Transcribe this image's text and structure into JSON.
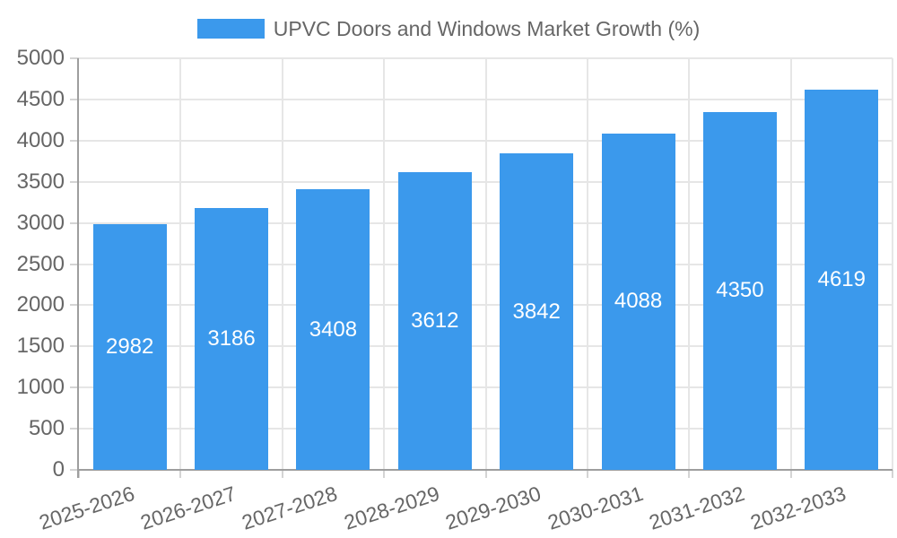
{
  "legend": {
    "label": "UPVC Doors and Windows Market Growth (%)"
  },
  "colors": {
    "bar": "#3B99EC",
    "bar_label_text": "#FFFFFF",
    "tick_text": "#666666",
    "legend_text": "#666666",
    "gridline": "#E6E6E6",
    "tick_mark": "#D4D4D4",
    "axis_line": "#9E9E9E",
    "background": "#FFFFFF"
  },
  "chart_data": {
    "type": "bar",
    "title": "",
    "categories": [
      "2025-2026",
      "2026-2027",
      "2027-2028",
      "2028-2029",
      "2029-2030",
      "2030-2031",
      "2031-2032",
      "2032-2033"
    ],
    "series": [
      {
        "name": "UPVC Doors and Windows Market Growth (%)",
        "values": [
          2982,
          3186,
          3408,
          3612,
          3842,
          4088,
          4350,
          4619
        ]
      }
    ],
    "bar_value_labels": [
      "2982",
      "3186",
      "3408",
      "3612",
      "3842",
      "4088",
      "4350",
      "4619"
    ],
    "xlabel": "",
    "ylabel": "",
    "ylim": [
      0,
      5000
    ],
    "ytick_step": 500,
    "ytick_labels": [
      "0",
      "500",
      "1000",
      "1500",
      "2000",
      "2500",
      "3000",
      "3500",
      "4000",
      "4500",
      "5000"
    ],
    "grid": true,
    "legend_position": "top",
    "x_tick_rotation_deg": -18
  }
}
